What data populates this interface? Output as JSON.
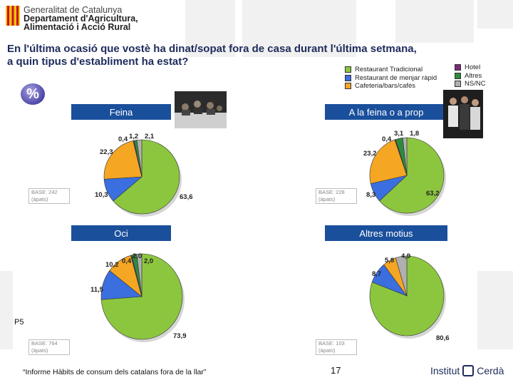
{
  "header": {
    "org_line1": "Generalitat de Catalunya",
    "org_line2": "Departament d'Agricultura,",
    "org_line3": "Alimentació i Acció Rural"
  },
  "title_line1": "En l'última ocasió que vostè ha dinat/sopat fora de casa durant l'última setmana,",
  "title_line2": "a quin tipus d'establiment ha estat?",
  "percent_symbol": "%",
  "legend_left": [
    "Restaurant Tradicional",
    "Restaurant de menjar ràpid",
    "Cafeteria/bars/cafès"
  ],
  "legend_right": [
    "Hotel",
    "Altres",
    "NS/NC"
  ],
  "colors": {
    "restaurant_tradicional": "#8cc63f",
    "menjar_rapid": "#3b6fe0",
    "cafeteria": "#f5a623",
    "hotel": "#7a2a7a",
    "altres": "#2e8b3e",
    "nsnc": "#b0b0b0",
    "header_blue": "#1a4f9c"
  },
  "chart_data": [
    {
      "type": "pie",
      "title": "Feina",
      "categories": [
        "Restaurant Tradicional",
        "Restaurant de menjar ràpid",
        "Cafeteria/bars/cafès",
        "Hotel",
        "Altres",
        "NS/NC"
      ],
      "values": [
        63.6,
        10.3,
        22.3,
        0.4,
        1.2,
        2.1
      ],
      "labels": [
        "63,6",
        "10,3",
        "22,3",
        "0,4",
        "1,2",
        "2,1"
      ],
      "base": "BASE: 242",
      "base_unit": "(àpats)"
    },
    {
      "type": "pie",
      "title": "A la feina o a prop",
      "categories": [
        "Restaurant Tradicional",
        "Restaurant de menjar ràpid",
        "Cafeteria/bars/cafès",
        "Hotel",
        "Altres",
        "NS/NC"
      ],
      "values": [
        63.2,
        8.3,
        23.2,
        0.4,
        3.1,
        1.8
      ],
      "labels": [
        "63,2",
        "8,3",
        "23,2",
        "0,4",
        "3,1",
        "1,8"
      ],
      "base": "BASE: 228",
      "base_unit": "(àpats)"
    },
    {
      "type": "pie",
      "title": "Oci",
      "categories": [
        "Restaurant Tradicional",
        "Restaurant de menjar ràpid",
        "Cafeteria/bars/cafès",
        "Hotel",
        "Altres",
        "NS/NC"
      ],
      "values": [
        73.9,
        11.5,
        10.2,
        0.4,
        2.0,
        2.0
      ],
      "labels": [
        "73,9",
        "11,5",
        "10,2",
        "0,4",
        "2,0",
        "2,0"
      ],
      "base": "BASE: 764",
      "base_unit": "(àpats)"
    },
    {
      "type": "pie",
      "title": "Altres motius",
      "categories": [
        "Restaurant Tradicional",
        "Restaurant de menjar ràpid",
        "Cafeteria/bars/cafès",
        "Hotel",
        "Altres",
        "NS/NC"
      ],
      "values": [
        80.6,
        8.7,
        5.8,
        0,
        0,
        4.9
      ],
      "labels": [
        "80,6",
        "8,7",
        "5,8",
        "",
        "",
        "4,9"
      ],
      "base": "BASE: 103",
      "base_unit": "(àpats)"
    }
  ],
  "footer": {
    "question_code": "P5",
    "report": "“Informe Hàbits de consum dels catalans fora de la llar”",
    "page": "17",
    "brand": "Institut",
    "brand2": "Cerdà"
  }
}
